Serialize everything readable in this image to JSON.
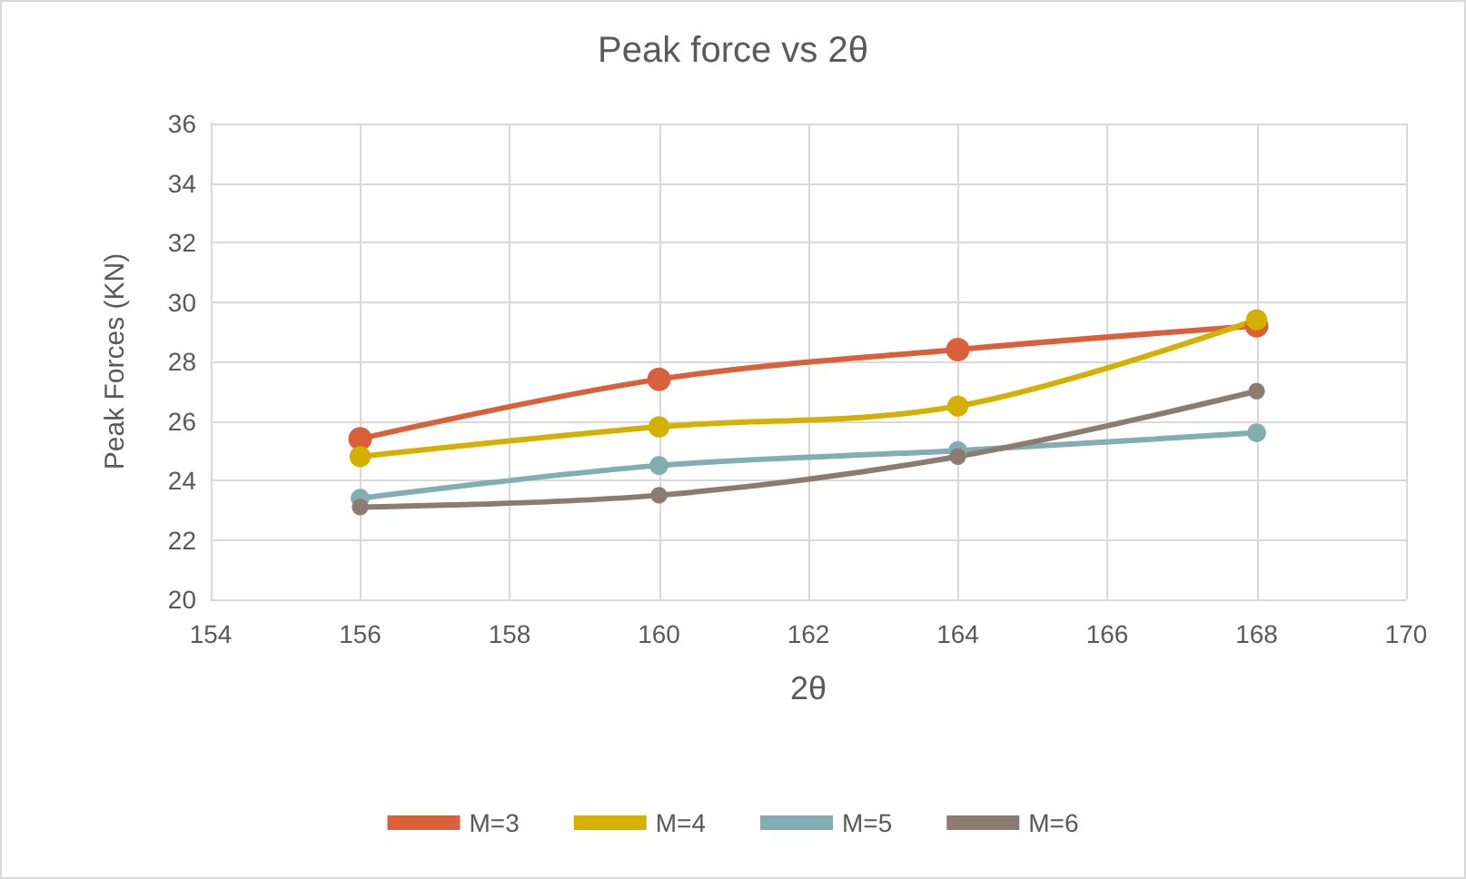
{
  "chart_data": {
    "type": "line",
    "title": "Peak force vs 2θ",
    "xlabel": "2θ",
    "ylabel": "Peak Forces (KN)",
    "x": [
      156,
      160,
      164,
      168
    ],
    "series": [
      {
        "name": "M=3",
        "color": "#d9603b",
        "values": [
          25.4,
          27.4,
          28.4,
          29.2
        ]
      },
      {
        "name": "M=4",
        "color": "#d4b000",
        "values": [
          24.8,
          25.8,
          26.5,
          29.4
        ]
      },
      {
        "name": "M=5",
        "color": "#82aeb1",
        "values": [
          23.4,
          24.5,
          25.0,
          25.6
        ]
      },
      {
        "name": "M=6",
        "color": "#8c7b70",
        "values": [
          23.1,
          23.5,
          24.8,
          27.0
        ]
      }
    ],
    "xlim": [
      154,
      170
    ],
    "xticks": [
      154,
      156,
      158,
      160,
      162,
      164,
      166,
      168,
      170
    ],
    "ylim": [
      20,
      36
    ],
    "yticks": [
      20,
      22,
      24,
      26,
      28,
      30,
      32,
      34,
      36
    ],
    "grid": true,
    "legend": "bottom",
    "marker": "circle",
    "line_style": "solid"
  }
}
